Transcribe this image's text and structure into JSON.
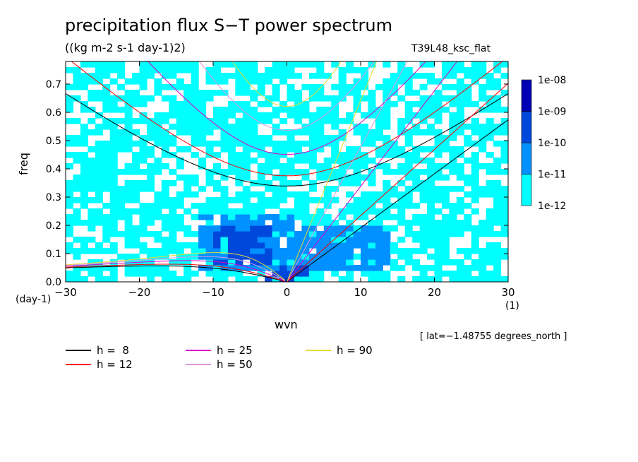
{
  "title": "precipitation flux S−T power spectrum",
  "subtitle": "((kg m-2 s-1 day-1)2)",
  "run_label": "T39L48_ksc_flat",
  "lat_note": "[ lat=−1.48755 degrees_north ]",
  "colors": {
    "c1": "#00FFFF",
    "c2": "#0090FF",
    "c3": "#0048DC",
    "c4": "#0000B4",
    "c5": "#5A00C8"
  },
  "chart_data": {
    "type": "heatmap",
    "title": "precipitation flux S−T power spectrum",
    "xlabel": "wvn",
    "xunit": "(1)",
    "ylabel": "freq",
    "yunit": "(day-1)",
    "xlim": [
      -30,
      30
    ],
    "ylim": [
      0,
      0.78
    ],
    "xticks": [
      -30,
      -20,
      -10,
      0,
      10,
      20,
      30
    ],
    "xtick_labels": [
      "−30",
      "−20",
      "−10",
      "0",
      "10",
      "20",
      "30"
    ],
    "yticks": [
      0.0,
      0.1,
      0.2,
      0.3,
      0.4,
      0.5,
      0.6,
      0.7
    ],
    "ytick_labels": [
      "0.0",
      "0.1",
      "0.2",
      "0.3",
      "0.4",
      "0.5",
      "0.6",
      "0.7"
    ],
    "colorbar": {
      "levels": [
        "1e-12",
        "1e-11",
        "1e-10",
        "1e-09",
        "1e-08"
      ],
      "colors": [
        "#00FFFF",
        "#0090FF",
        "#0048DC",
        "#0000B4",
        "#5A00C8"
      ]
    },
    "power_regions": [
      {
        "level": 2,
        "x_range": [
          -12,
          2
        ],
        "freq_range": [
          0.05,
          0.24
        ]
      },
      {
        "level": 3,
        "x_range": [
          -10,
          -2
        ],
        "freq_range": [
          0.07,
          0.2
        ]
      },
      {
        "level": 3,
        "x_range": [
          -3,
          3
        ],
        "freq_range": [
          0.0,
          0.05
        ]
      },
      {
        "level": 2,
        "x_range": [
          2,
          14
        ],
        "freq_range": [
          0.05,
          0.2
        ]
      }
    ],
    "dispersion_curves": [
      {
        "name": "h =  8",
        "equivalent_depth": 8,
        "color": "#000000"
      },
      {
        "name": "h = 12",
        "equivalent_depth": 12,
        "color": "#FF0000"
      },
      {
        "name": "h = 25",
        "equivalent_depth": 25,
        "color": "#DC00C8"
      },
      {
        "name": "h = 50",
        "equivalent_depth": 50,
        "color": "#DC96DC"
      },
      {
        "name": "h = 90",
        "equivalent_depth": 90,
        "color": "#E6DC32"
      }
    ],
    "grid": false,
    "legend_position": "bottom"
  }
}
